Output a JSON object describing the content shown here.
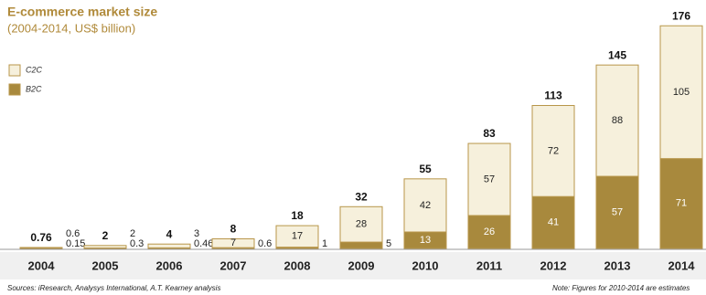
{
  "chart_data": {
    "type": "stacked-bar",
    "title": "E-commerce market size",
    "subtitle": "(2004-2014, US$ billion)",
    "categories": [
      "2004",
      "2005",
      "2006",
      "2007",
      "2008",
      "2009",
      "2010",
      "2011",
      "2012",
      "2013",
      "2014"
    ],
    "series": [
      {
        "name": "B2C",
        "color": "#a8893d",
        "values": [
          0.15,
          0.3,
          0.46,
          0.6,
          1,
          5,
          13,
          26,
          41,
          57,
          71
        ]
      },
      {
        "name": "C2C",
        "color": "#f6f0dc",
        "values": [
          0.6,
          2,
          3,
          7,
          17,
          28,
          42,
          57,
          72,
          88,
          105
        ]
      }
    ],
    "totals": [
      0.76,
      2,
      4,
      8,
      18,
      32,
      55,
      83,
      113,
      145,
      176
    ],
    "source": "Sources: iResearch, Analysys International, A.T. Kearney analysis",
    "note": "Note: Figures for 2010-2014 are estimates"
  }
}
